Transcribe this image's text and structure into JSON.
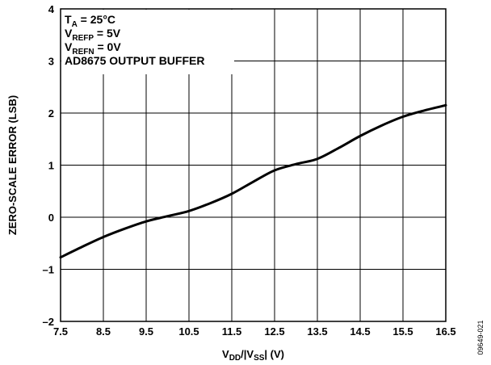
{
  "chart_data": {
    "type": "line",
    "title": "",
    "xlabel": {
      "main": "V",
      "sub1": "DD",
      "mid": "/|V",
      "sub2": "SS",
      "end": "| (V)"
    },
    "ylabel": "ZERO-SCALE ERROR (LSB)",
    "xlim": [
      7.5,
      16.5
    ],
    "ylim": [
      -2,
      4
    ],
    "xticks": [
      "7.5",
      "8.5",
      "9.5",
      "10.5",
      "11.5",
      "12.5",
      "13.5",
      "14.5",
      "15.5",
      "16.5"
    ],
    "yticks": [
      "4",
      "3",
      "2",
      "1",
      "0",
      "–1",
      "–2"
    ],
    "grid": true,
    "annotations": [
      {
        "main": "T",
        "sub": "A",
        "rest": " = 25°C"
      },
      {
        "main": "V",
        "sub": "REFP",
        "rest": " = 5V"
      },
      {
        "main": "V",
        "sub": "REFN",
        "rest": " = 0V"
      },
      {
        "main": "AD8675 OUTPUT BUFFER",
        "sub": "",
        "rest": ""
      }
    ],
    "figure_id": "09649-021",
    "series": [
      {
        "x": [
          7.5,
          8.0,
          8.5,
          9.0,
          9.5,
          10.0,
          10.5,
          11.0,
          11.5,
          12.0,
          12.5,
          13.0,
          13.5,
          14.0,
          14.5,
          15.0,
          15.5,
          16.0,
          16.5
        ],
        "y": [
          -0.77,
          -0.57,
          -0.38,
          -0.22,
          -0.08,
          0.02,
          0.12,
          0.27,
          0.45,
          0.68,
          0.9,
          1.02,
          1.12,
          1.33,
          1.56,
          1.76,
          1.93,
          2.05,
          2.15
        ]
      }
    ]
  }
}
